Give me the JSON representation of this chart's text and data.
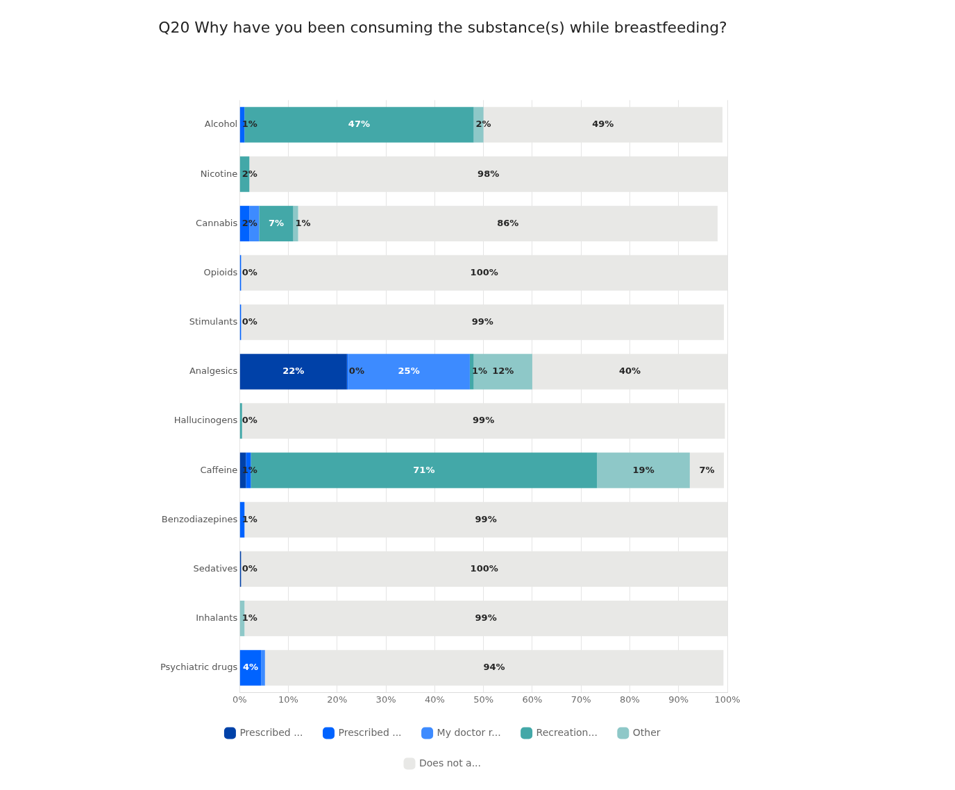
{
  "chart_data": {
    "type": "bar",
    "orientation": "horizontal",
    "stacked": true,
    "title": "Q20 Why have you been consuming the substance(s) while breastfeeding?",
    "categories": [
      "Alcohol",
      "Nicotine",
      "Cannabis",
      "Opioids",
      "Stimulants",
      "Analgesics",
      "Hallucinogens",
      "Caffeine",
      "Benzodiazepines",
      "Sedatives",
      "Inhalants",
      "Psychiatric drugs"
    ],
    "series": [
      {
        "name": "Prescribed ...",
        "color": "#0041a8",
        "values": [
          0,
          0,
          0,
          0,
          0,
          22,
          0,
          1.3,
          0,
          0.3,
          0,
          0
        ],
        "value_labels": [
          null,
          null,
          null,
          null,
          null,
          "22%",
          null,
          "1%",
          null,
          "0%",
          null,
          null
        ]
      },
      {
        "name": "Prescribed ...",
        "color": "#0063ff",
        "values": [
          1,
          0,
          2,
          0.3,
          0.3,
          0.2,
          0,
          1,
          1,
          0,
          0,
          4.4
        ],
        "value_labels": [
          "1%",
          null,
          "2%",
          "0%",
          "0%",
          "0%",
          null,
          null,
          "1%",
          null,
          null,
          "4%"
        ]
      },
      {
        "name": "My doctor r...",
        "color": "#3d8bff",
        "values": [
          0,
          0,
          2,
          0,
          0,
          25,
          0,
          0,
          0,
          0,
          0,
          0.8
        ],
        "value_labels": [
          null,
          null,
          null,
          null,
          null,
          "25%",
          null,
          null,
          null,
          null,
          null,
          null
        ]
      },
      {
        "name": "Recreation...",
        "color": "#43a8a8",
        "values": [
          47,
          2,
          7,
          0,
          0,
          0.8,
          0.5,
          71,
          0,
          0,
          0,
          0
        ],
        "value_labels": [
          "47%",
          "2%",
          "7%",
          null,
          null,
          "1%",
          "0%",
          "71%",
          null,
          null,
          null,
          null
        ]
      },
      {
        "name": "Other",
        "color": "#8ec8c8",
        "values": [
          2,
          0,
          1,
          0,
          0,
          12,
          0,
          19,
          0,
          0,
          1,
          0
        ],
        "value_labels": [
          "2%",
          null,
          "1%",
          null,
          null,
          "12%",
          null,
          "19%",
          null,
          null,
          "1%",
          null
        ]
      },
      {
        "name": "Does not a...",
        "color": "#e8e8e6",
        "values": [
          49,
          98,
          86,
          99.7,
          99,
          40,
          99,
          7,
          99,
          99.7,
          99,
          94
        ],
        "value_labels": [
          "49%",
          "98%",
          "86%",
          "100%",
          "99%",
          "40%",
          "99%",
          "7%",
          "99%",
          "100%",
          "99%",
          "94%"
        ]
      }
    ],
    "xlim": [
      0,
      100
    ],
    "xticks": [
      {
        "value": 0,
        "label": "0%"
      },
      {
        "value": 10,
        "label": "10%"
      },
      {
        "value": 20,
        "label": "20%"
      },
      {
        "value": 30,
        "label": "30%"
      },
      {
        "value": 40,
        "label": "40%"
      },
      {
        "value": 50,
        "label": "50%"
      },
      {
        "value": 60,
        "label": "60%"
      },
      {
        "value": 70,
        "label": "70%"
      },
      {
        "value": 80,
        "label": "80%"
      },
      {
        "value": 90,
        "label": "90%"
      },
      {
        "value": 100,
        "label": "100%"
      }
    ],
    "grid": "x",
    "legend": "bottom"
  }
}
